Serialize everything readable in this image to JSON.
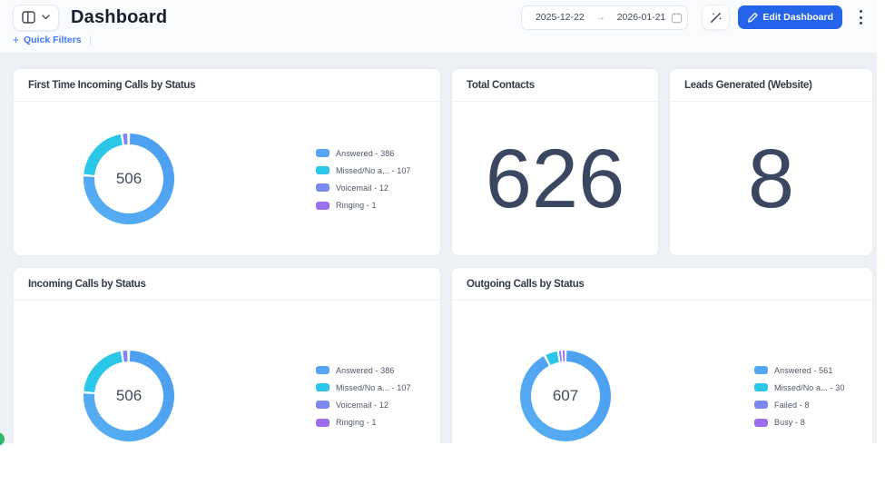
{
  "header": {
    "title": "Dashboard",
    "quick_filters_label": "Quick Filters",
    "quick_filters_plus": "+",
    "date_range": {
      "start": "2025-12-22",
      "end": "2026-01-21"
    },
    "edit_button_label": "Edit Dashboard",
    "accent_color": "#2563eb"
  },
  "chart_data": [
    {
      "type": "pie",
      "title": "First Time Incoming Calls by Status",
      "total": "506",
      "legend_position": "right",
      "series": [
        {
          "name": "Answered",
          "value": 386,
          "color": "#54a7f2"
        },
        {
          "name": "Missed/No a...",
          "value": 107,
          "color": "#2bc7e8"
        },
        {
          "name": "Voicemail",
          "value": 12,
          "color": "#7b88f0"
        },
        {
          "name": "Ringing",
          "value": 1,
          "color": "#9c6ef0"
        }
      ]
    },
    {
      "type": "number",
      "title": "Total Contacts",
      "value": "626"
    },
    {
      "type": "number",
      "title": "Leads Generated (Website)",
      "value": "8"
    },
    {
      "type": "pie",
      "title": "Incoming Calls by Status",
      "total": "506",
      "legend_position": "right",
      "series": [
        {
          "name": "Answered",
          "value": 386,
          "color": "#54a7f2"
        },
        {
          "name": "Missed/No a...",
          "value": 107,
          "color": "#2bc7e8"
        },
        {
          "name": "Voicemail",
          "value": 12,
          "color": "#7b88f0"
        },
        {
          "name": "Ringing",
          "value": 1,
          "color": "#9c6ef0"
        }
      ]
    },
    {
      "type": "pie",
      "title": "Outgoing Calls by Status",
      "total": "607",
      "legend_position": "right",
      "series": [
        {
          "name": "Answered",
          "value": 561,
          "color": "#54a7f2"
        },
        {
          "name": "Missed/No a...",
          "value": 30,
          "color": "#2bc7e8"
        },
        {
          "name": "Failed",
          "value": 8,
          "color": "#7b88f0"
        },
        {
          "name": "Busy",
          "value": 8,
          "color": "#9c6ef0"
        }
      ]
    }
  ]
}
